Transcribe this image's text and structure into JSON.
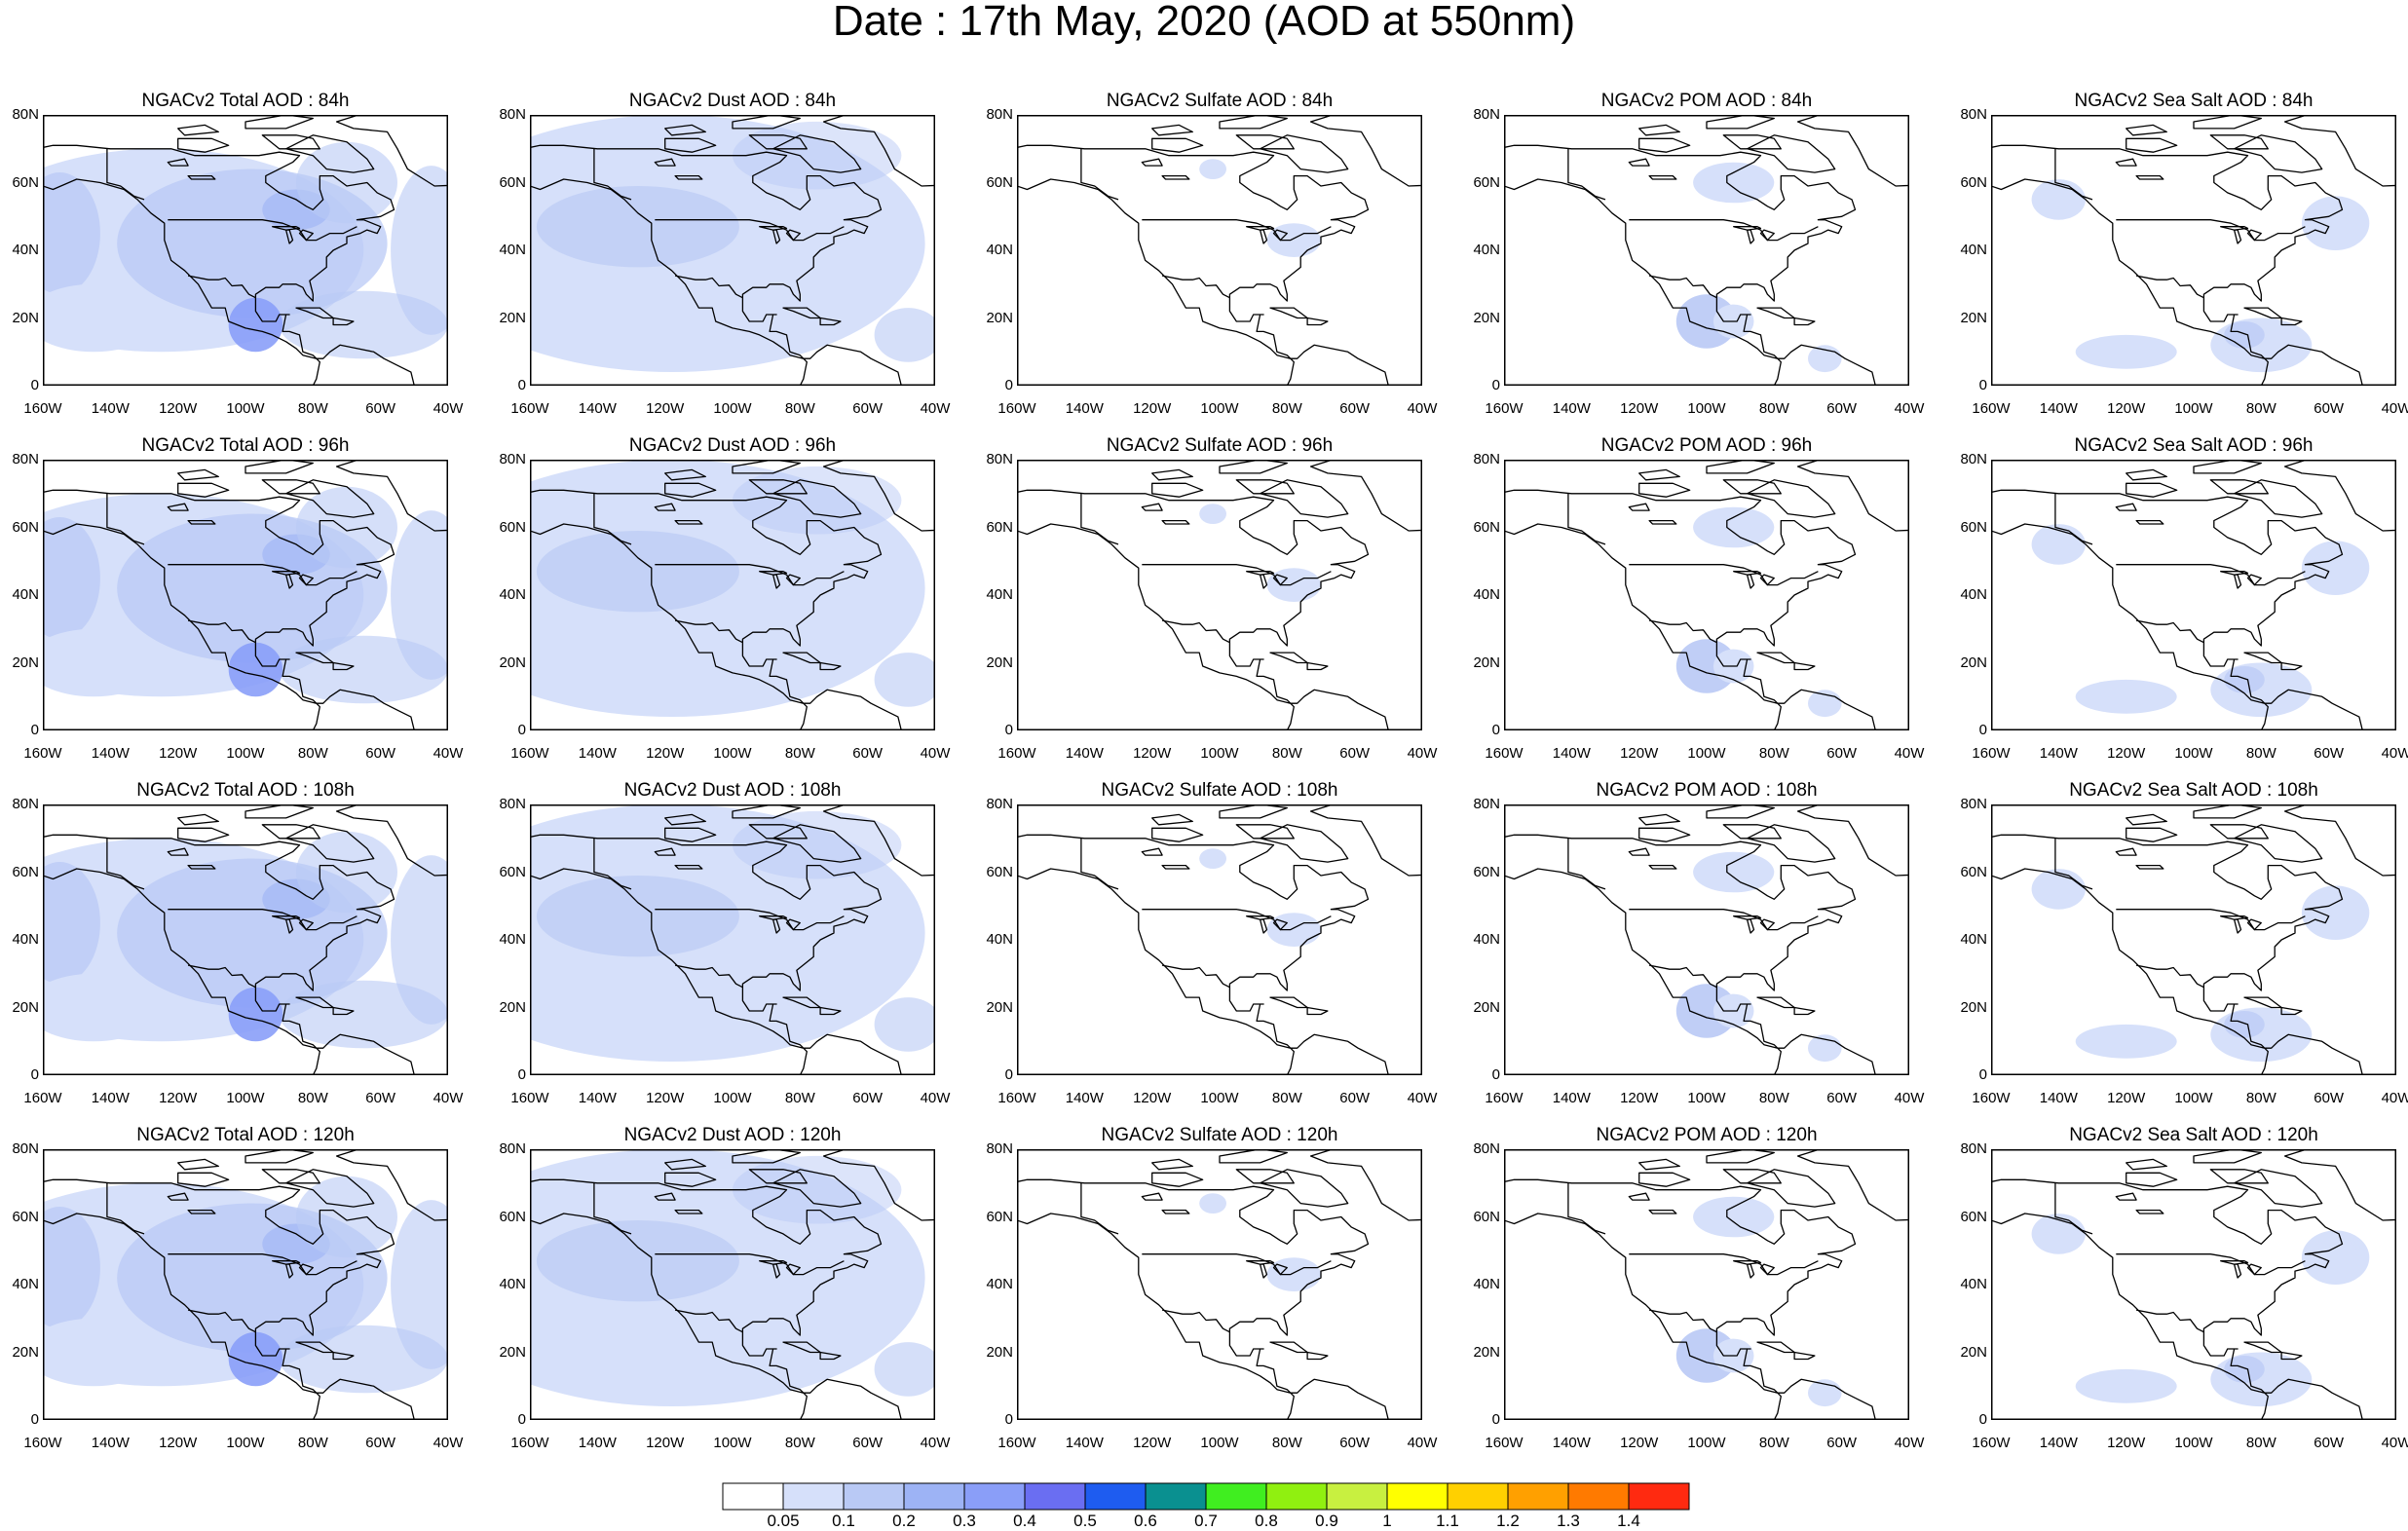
{
  "title": "Date : 17th May, 2020 (AOD at 550nm)",
  "axes": {
    "lat_labels": [
      "80N",
      "60N",
      "40N",
      "20N",
      "0"
    ],
    "lon_labels": [
      "160W",
      "140W",
      "120W",
      "100W",
      "80W",
      "60W",
      "40W"
    ],
    "lon_range": [
      -160,
      -40
    ],
    "lat_range": [
      0,
      80
    ]
  },
  "panels": [
    {
      "title": "NGACv2 Total AOD : 84h",
      "species": "total"
    },
    {
      "title": "NGACv2 Dust AOD : 84h",
      "species": "dust"
    },
    {
      "title": "NGACv2 Sulfate AOD : 84h",
      "species": "sulfate"
    },
    {
      "title": "NGACv2 POM AOD : 84h",
      "species": "pom"
    },
    {
      "title": "NGACv2 Sea Salt AOD : 84h",
      "species": "seasalt"
    },
    {
      "title": "NGACv2 Total AOD : 96h",
      "species": "total"
    },
    {
      "title": "NGACv2 Dust AOD : 96h",
      "species": "dust"
    },
    {
      "title": "NGACv2 Sulfate AOD : 96h",
      "species": "sulfate"
    },
    {
      "title": "NGACv2 POM AOD : 96h",
      "species": "pom"
    },
    {
      "title": "NGACv2 Sea Salt AOD : 96h",
      "species": "seasalt"
    },
    {
      "title": "NGACv2 Total AOD : 108h",
      "species": "total"
    },
    {
      "title": "NGACv2 Dust AOD : 108h",
      "species": "dust"
    },
    {
      "title": "NGACv2 Sulfate AOD : 108h",
      "species": "sulfate"
    },
    {
      "title": "NGACv2 POM AOD : 108h",
      "species": "pom"
    },
    {
      "title": "NGACv2 Sea Salt AOD : 108h",
      "species": "seasalt"
    },
    {
      "title": "NGACv2 Total AOD : 120h",
      "species": "total"
    },
    {
      "title": "NGACv2 Dust AOD : 120h",
      "species": "dust"
    },
    {
      "title": "NGACv2 Sulfate AOD : 120h",
      "species": "sulfate"
    },
    {
      "title": "NGACv2 POM AOD : 120h",
      "species": "pom"
    },
    {
      "title": "NGACv2 Sea Salt  AOD : 120h",
      "species": "seasalt"
    }
  ],
  "colorbar": {
    "labels": [
      "0.05",
      "0.1",
      "0.2",
      "0.3",
      "0.4",
      "0.5",
      "0.6",
      "0.7",
      "0.8",
      "0.9",
      "1",
      "1.1",
      "1.2",
      "1.3",
      "1.4"
    ],
    "colors": [
      "#ffffff",
      "#d6e0fa",
      "#b9c9f5",
      "#9db3f5",
      "#8a9ef8",
      "#6a6ef2",
      "#1e5cf0",
      "#0a9090",
      "#40ee20",
      "#90f010",
      "#c8f040",
      "#ffff00",
      "#ffd000",
      "#ffa000",
      "#ff7a00",
      "#ff2a10"
    ]
  }
}
